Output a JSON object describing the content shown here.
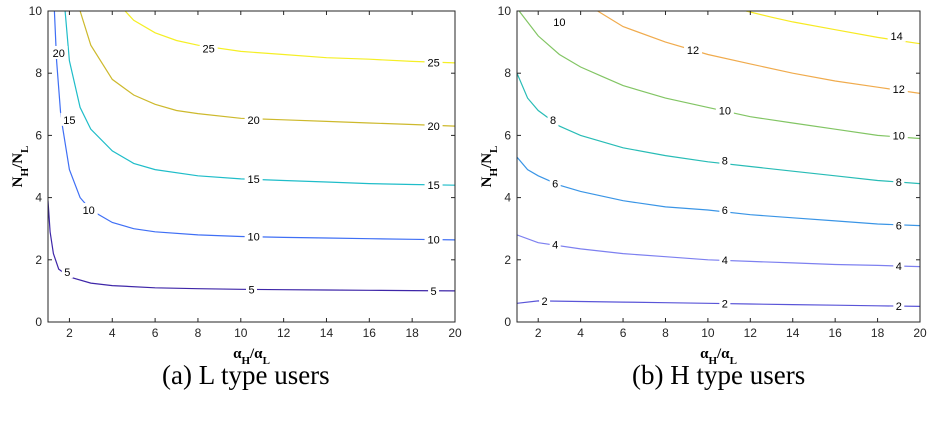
{
  "chart_data": [
    {
      "type": "line",
      "subtype": "contour",
      "caption": "(a) L type users",
      "xlabel": {
        "main": "α",
        "sub1": "H",
        "sep": "/α",
        "sub2": "L"
      },
      "ylabel": {
        "main": "N",
        "sub1": "H",
        "sep": "/N",
        "sub2": "L"
      },
      "xlim": [
        1,
        20
      ],
      "ylim": [
        0,
        10
      ],
      "xticks": [
        2,
        4,
        6,
        8,
        10,
        12,
        14,
        16,
        18,
        20
      ],
      "yticks": [
        0,
        2,
        4,
        6,
        8,
        10
      ],
      "grid": false,
      "series": [
        {
          "name": "5",
          "color": "#3e26a8",
          "labels": [
            {
              "text": "5",
              "x": 1.9,
              "y": 1.6
            },
            {
              "text": "5",
              "x": 10.5,
              "y": 1.05
            },
            {
              "text": "5",
              "x": 19.0,
              "y": 1.0
            }
          ],
          "x": [
            1.0,
            1.1,
            1.25,
            1.5,
            2,
            3,
            4,
            6,
            8,
            10,
            12,
            14,
            16,
            18,
            20
          ],
          "y": [
            3.9,
            2.9,
            2.2,
            1.7,
            1.45,
            1.25,
            1.17,
            1.1,
            1.07,
            1.05,
            1.04,
            1.03,
            1.02,
            1.01,
            1.0
          ]
        },
        {
          "name": "10",
          "color": "#3f6ff5",
          "labels": [
            {
              "text": "10",
              "x": 2.9,
              "y": 3.6
            },
            {
              "text": "10",
              "x": 10.6,
              "y": 2.75
            },
            {
              "text": "10",
              "x": 19.0,
              "y": 2.65
            }
          ],
          "x": [
            1.3,
            1.4,
            1.6,
            2,
            2.5,
            3,
            4,
            5,
            6,
            8,
            10,
            12,
            14,
            16,
            18,
            20
          ],
          "y": [
            10,
            8.4,
            6.6,
            4.9,
            4.0,
            3.6,
            3.2,
            3.0,
            2.9,
            2.8,
            2.75,
            2.72,
            2.7,
            2.68,
            2.66,
            2.64
          ]
        },
        {
          "name": "15",
          "color": "#1fbdc9",
          "labels": [
            {
              "text": "15",
              "x": 2.0,
              "y": 6.5
            },
            {
              "text": "15",
              "x": 10.6,
              "y": 4.6
            },
            {
              "text": "15",
              "x": 19.0,
              "y": 4.4
            }
          ],
          "x": [
            1.8,
            2,
            2.5,
            3,
            4,
            5,
            6,
            8,
            10,
            12,
            14,
            16,
            18,
            20
          ],
          "y": [
            10,
            8.4,
            6.9,
            6.2,
            5.5,
            5.1,
            4.9,
            4.7,
            4.6,
            4.55,
            4.5,
            4.45,
            4.42,
            4.4
          ]
        },
        {
          "name": "20",
          "color": "#cdb92c",
          "labels": [
            {
              "text": "20",
              "x": 1.5,
              "y": 8.65
            },
            {
              "text": "20",
              "x": 10.6,
              "y": 6.5
            },
            {
              "text": "20",
              "x": 19.0,
              "y": 6.3
            }
          ],
          "x": [
            2.5,
            3,
            4,
            5,
            6,
            7,
            8,
            10,
            12,
            14,
            16,
            18,
            20
          ],
          "y": [
            10,
            8.9,
            7.8,
            7.3,
            7.0,
            6.8,
            6.7,
            6.55,
            6.5,
            6.45,
            6.4,
            6.35,
            6.3
          ]
        },
        {
          "name": "25",
          "color": "#f5ef25",
          "labels": [
            {
              "text": "25",
              "x": 8.5,
              "y": 8.8
            },
            {
              "text": "25",
              "x": 19.0,
              "y": 8.35
            }
          ],
          "x": [
            4.6,
            5,
            6,
            7,
            8,
            10,
            12,
            14,
            16,
            18,
            20
          ],
          "y": [
            10,
            9.7,
            9.3,
            9.05,
            8.9,
            8.7,
            8.6,
            8.5,
            8.45,
            8.38,
            8.33
          ]
        }
      ]
    },
    {
      "type": "line",
      "subtype": "contour",
      "caption": "(b) H type users",
      "xlabel": {
        "main": "α",
        "sub1": "H",
        "sep": "/α",
        "sub2": "L"
      },
      "ylabel": {
        "main": "N",
        "sub1": "H",
        "sep": "/N",
        "sub2": "L"
      },
      "xlim": [
        1,
        20
      ],
      "ylim": [
        0,
        10
      ],
      "xticks": [
        2,
        4,
        6,
        8,
        10,
        12,
        14,
        16,
        18,
        20
      ],
      "yticks": [
        0,
        2,
        4,
        6,
        8,
        10
      ],
      "grid": false,
      "series": [
        {
          "name": "2",
          "color": "#5a55d8",
          "labels": [
            {
              "text": "2",
              "x": 2.3,
              "y": 0.68
            },
            {
              "text": "2",
              "x": 10.8,
              "y": 0.6
            },
            {
              "text": "2",
              "x": 19.0,
              "y": 0.52
            }
          ],
          "x": [
            1,
            2,
            4,
            6,
            8,
            10,
            12,
            14,
            16,
            18,
            20
          ],
          "y": [
            0.6,
            0.68,
            0.66,
            0.64,
            0.62,
            0.6,
            0.58,
            0.56,
            0.54,
            0.52,
            0.5
          ]
        },
        {
          "name": "4",
          "color": "#7d80f0",
          "labels": [
            {
              "text": "4",
              "x": 2.8,
              "y": 2.5
            },
            {
              "text": "4",
              "x": 10.8,
              "y": 2.0
            },
            {
              "text": "4",
              "x": 19.0,
              "y": 1.8
            }
          ],
          "x": [
            1,
            2,
            4,
            6,
            8,
            10,
            12,
            14,
            16,
            18,
            20
          ],
          "y": [
            2.8,
            2.55,
            2.35,
            2.2,
            2.1,
            2.0,
            1.95,
            1.9,
            1.85,
            1.82,
            1.78
          ]
        },
        {
          "name": "6",
          "color": "#3a95e6",
          "labels": [
            {
              "text": "6",
              "x": 2.8,
              "y": 4.45
            },
            {
              "text": "6",
              "x": 10.8,
              "y": 3.6
            },
            {
              "text": "6",
              "x": 19.0,
              "y": 3.1
            }
          ],
          "x": [
            1,
            1.5,
            2,
            3,
            4,
            6,
            8,
            10,
            12,
            14,
            16,
            18,
            20
          ],
          "y": [
            5.3,
            4.9,
            4.7,
            4.4,
            4.2,
            3.9,
            3.7,
            3.6,
            3.45,
            3.35,
            3.25,
            3.15,
            3.1
          ]
        },
        {
          "name": "8",
          "color": "#28bcb6",
          "labels": [
            {
              "text": "8",
              "x": 2.7,
              "y": 6.5
            },
            {
              "text": "8",
              "x": 10.8,
              "y": 5.2
            },
            {
              "text": "8",
              "x": 19.0,
              "y": 4.5
            }
          ],
          "x": [
            1,
            1.5,
            2,
            3,
            4,
            6,
            8,
            10,
            12,
            14,
            16,
            18,
            20
          ],
          "y": [
            8.0,
            7.2,
            6.8,
            6.3,
            6.0,
            5.6,
            5.35,
            5.15,
            5.0,
            4.85,
            4.7,
            4.55,
            4.45
          ]
        },
        {
          "name": "10",
          "color": "#82c564",
          "labels": [
            {
              "text": "10",
              "x": 3.0,
              "y": 9.65
            },
            {
              "text": "10",
              "x": 10.8,
              "y": 6.8
            },
            {
              "text": "10",
              "x": 19.0,
              "y": 6.0
            }
          ],
          "x": [
            1.1,
            2,
            3,
            4,
            5,
            6,
            8,
            10,
            12,
            14,
            16,
            18,
            20
          ],
          "y": [
            10,
            9.2,
            8.6,
            8.2,
            7.9,
            7.6,
            7.2,
            6.9,
            6.6,
            6.4,
            6.2,
            6.0,
            5.9
          ]
        },
        {
          "name": "12",
          "color": "#f0ab4d",
          "labels": [
            {
              "text": "12",
              "x": 9.3,
              "y": 8.75
            },
            {
              "text": "12",
              "x": 19.0,
              "y": 7.5
            }
          ],
          "x": [
            4.8,
            6,
            8,
            10,
            12,
            14,
            16,
            18,
            20
          ],
          "y": [
            10,
            9.5,
            9.0,
            8.6,
            8.3,
            8.0,
            7.75,
            7.55,
            7.35
          ]
        },
        {
          "name": "14",
          "color": "#f7ea22",
          "labels": [
            {
              "text": "14",
              "x": 18.9,
              "y": 9.2
            }
          ],
          "x": [
            11.8,
            13,
            14,
            16,
            18,
            20
          ],
          "y": [
            10,
            9.8,
            9.65,
            9.4,
            9.15,
            8.95
          ]
        }
      ]
    }
  ]
}
